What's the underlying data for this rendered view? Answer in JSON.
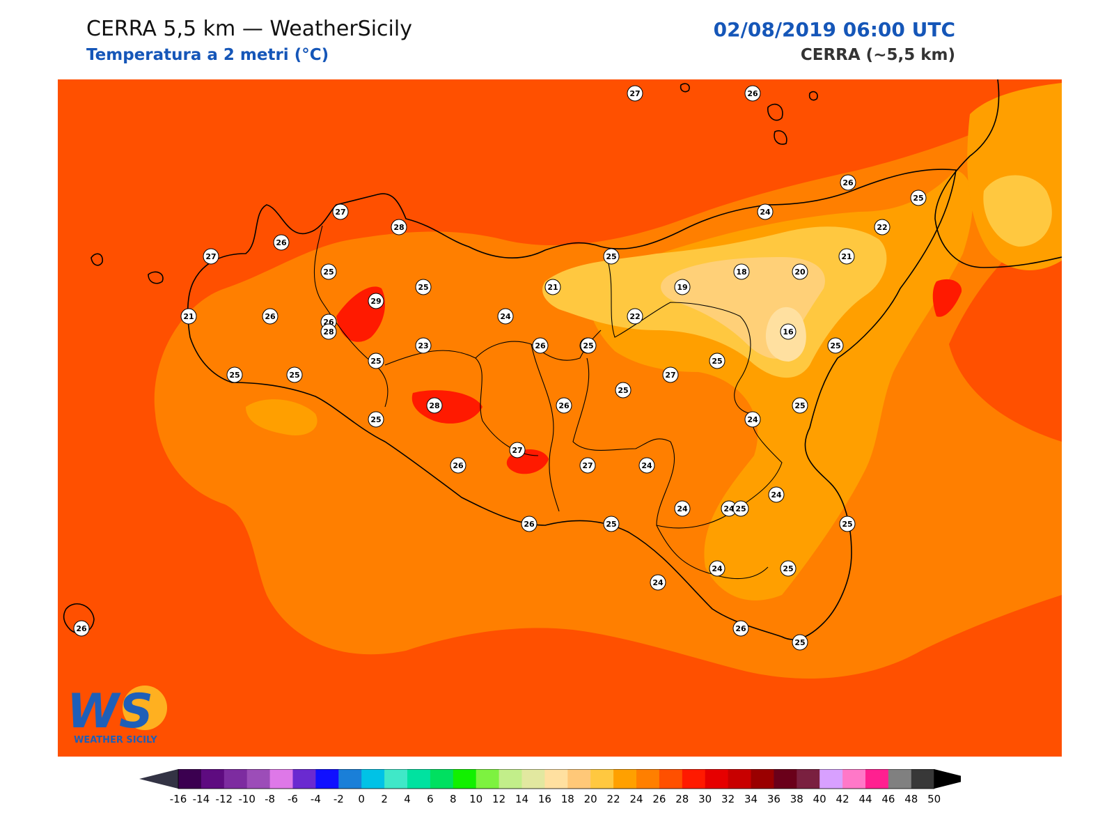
{
  "header": {
    "title": "CERRA 5,5 km — WeatherSicily",
    "subtitle": "Temperatura a 2 metri (°C)",
    "datetime": "02/08/2019 06:00 UTC",
    "model": "CERRA (~5,5 km)"
  },
  "map": {
    "variable": "2 m air temperature",
    "unit": "°C",
    "region": "Sicily",
    "background_color": "#ff5000",
    "station_values": [
      27,
      26,
      26,
      25,
      27,
      24,
      28,
      22,
      26,
      27,
      25,
      26,
      21,
      25,
      25,
      18,
      20,
      19,
      21,
      29,
      21,
      22,
      26,
      24,
      28,
      16,
      25,
      23,
      25,
      26,
      26,
      25,
      25,
      25,
      27,
      25,
      25,
      28,
      26,
      25,
      24,
      25,
      27,
      27,
      24,
      26,
      26,
      24,
      24,
      25,
      25,
      25,
      24,
      24,
      25,
      24,
      26,
      25,
      26
    ]
  },
  "colorbar": {
    "ticks": [
      "-16",
      "-14",
      "-12",
      "-10",
      "-8",
      "-6",
      "-4",
      "-2",
      "0",
      "2",
      "4",
      "6",
      "8",
      "10",
      "12",
      "14",
      "16",
      "18",
      "20",
      "22",
      "24",
      "26",
      "28",
      "30",
      "32",
      "34",
      "36",
      "38",
      "40",
      "42",
      "44",
      "46",
      "48",
      "50"
    ],
    "colors": [
      "#3b0050",
      "#5e0b80",
      "#7d2ca0",
      "#9c4db8",
      "#de78e8",
      "#6a2ad0",
      "#1010ff",
      "#1a7fd8",
      "#00c2e6",
      "#40e8c8",
      "#00e2a0",
      "#00e060",
      "#12f000",
      "#7df240",
      "#c2ee8a",
      "#e2e8a0",
      "#ffe0a0",
      "#ffc878",
      "#ffc840",
      "#ffa000",
      "#ff7f00",
      "#ff5000",
      "#ff1a00",
      "#e60000",
      "#c80000",
      "#9a0000",
      "#6a001a",
      "#7a2040",
      "#d8a0ff",
      "#ff78c8",
      "#ff2090",
      "#808080",
      "#383838"
    ],
    "under_color": "#333344",
    "over_color": "#000000"
  },
  "logo": {
    "text": "WS",
    "caption": "WEATHER SICILY"
  }
}
